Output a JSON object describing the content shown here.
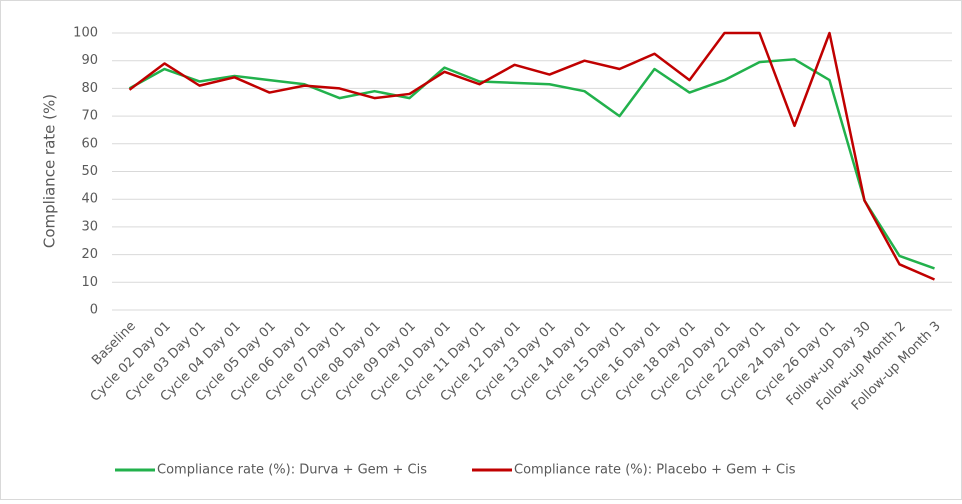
{
  "chart_data": {
    "type": "line",
    "y_label": "Compliance rate (%)",
    "categories": [
      "Baseline",
      "Cycle 02 Day 01",
      "Cycle 03 Day 01",
      "Cycle 04 Day 01",
      "Cycle 05 Day 01",
      "Cycle 06 Day 01",
      "Cycle 07 Day 01",
      "Cycle 08 Day 01",
      "Cycle 09 Day 01",
      "Cycle 10 Day 01",
      "Cycle 11 Day 01",
      "Cycle 12 Day 01",
      "Cycle 13 Day 01",
      "Cycle 14 Day 01",
      "Cycle 15 Day 01",
      "Cycle 16 Day 01",
      "Cycle 18 Day 01",
      "Cycle 20 Day 01",
      "Cycle 22 Day 01",
      "Cycle 24 Day 01",
      "Cycle 26 Day 01",
      "Follow-up Day 30",
      "Follow-up Month 2",
      "Follow-up Month 3"
    ],
    "series": [
      {
        "name": "Compliance rate (%): Durva + Gem + Cis",
        "color": "#22b14c",
        "values": [
          80,
          87,
          82.5,
          84.5,
          83,
          81.5,
          76.5,
          79,
          76.5,
          87.5,
          82.5,
          82,
          81.5,
          79,
          70,
          87,
          78.5,
          83,
          89.5,
          90.5,
          83,
          39.5,
          19.5,
          15
        ]
      },
      {
        "name": "Compliance rate (%): Placebo + Gem + Cis",
        "color": "#c00000",
        "values": [
          79.5,
          89,
          81,
          84,
          78.5,
          81,
          80,
          76.5,
          78,
          86,
          81.5,
          88.5,
          85,
          90,
          87,
          92.5,
          83,
          100,
          100,
          66.5,
          100,
          39.5,
          16.5,
          11
        ]
      }
    ],
    "ylim": [
      0,
      100
    ],
    "yticks": [
      0,
      10,
      20,
      30,
      40,
      50,
      60,
      70,
      80,
      90,
      100
    ],
    "grid": true,
    "legend": "bottom"
  }
}
